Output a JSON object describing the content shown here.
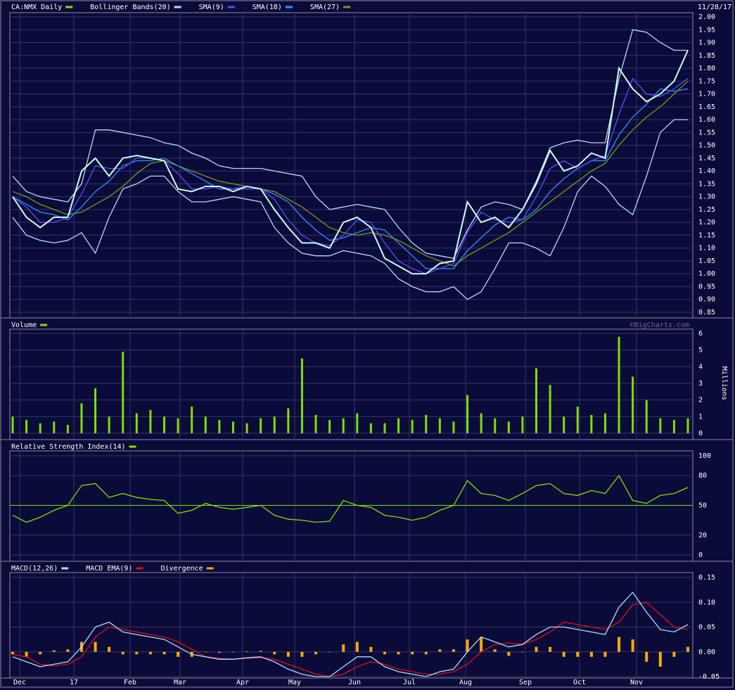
{
  "chart_data": [
    {
      "type": "line",
      "date": "11/28/17",
      "ylim": [
        0.85,
        2.0
      ],
      "yticks": [
        0.85,
        {
          "value": 0.9,
          "label": "0.90"
        },
        0.95,
        {
          "value": 1.0,
          "label": "1.00"
        },
        1.05,
        {
          "value": 1.1,
          "label": "1.10"
        },
        1.15,
        {
          "value": 1.2,
          "label": "1.20"
        },
        1.25,
        {
          "value": 1.3,
          "label": "1.30"
        },
        1.35,
        {
          "value": 1.4,
          "label": "1.40"
        },
        1.45,
        {
          "value": 1.5,
          "label": "1.50"
        },
        1.55,
        {
          "value": 1.6,
          "label": "1.60"
        },
        1.65,
        {
          "value": 1.7,
          "label": "1.70"
        },
        1.75,
        {
          "value": 1.8,
          "label": "1.80"
        },
        1.85,
        {
          "value": 1.9,
          "label": "1.90"
        },
        1.95,
        {
          "value": 2.0,
          "label": "2.00"
        }
      ],
      "grid": true,
      "series": [
        {
          "name": "CA:NMX Daily",
          "color": "#7fe000",
          "line_color": "#ccffee",
          "values": [
            1.3,
            1.22,
            1.18,
            1.22,
            1.22,
            1.4,
            1.45,
            1.38,
            1.45,
            1.46,
            1.45,
            1.44,
            1.33,
            1.32,
            1.34,
            1.34,
            1.32,
            1.34,
            1.33,
            1.25,
            1.18,
            1.12,
            1.12,
            1.1,
            1.2,
            1.22,
            1.18,
            1.06,
            1.03,
            1.0,
            1.0,
            1.04,
            1.05,
            1.28,
            1.2,
            1.22,
            1.18,
            1.25,
            1.35,
            1.48,
            1.4,
            1.42,
            1.47,
            1.45,
            1.8,
            1.72,
            1.67,
            1.7,
            1.75,
            1.87
          ]
        },
        {
          "name": "Bollinger Bands(20)",
          "color": "#b8d8ff",
          "values": [
            1.38,
            1.32,
            1.3,
            1.29,
            1.28,
            1.35,
            1.56,
            1.56,
            1.55,
            1.54,
            1.53,
            1.51,
            1.5,
            1.47,
            1.45,
            1.42,
            1.41,
            1.41,
            1.41,
            1.4,
            1.39,
            1.38,
            1.3,
            1.25,
            1.26,
            1.27,
            1.26,
            1.25,
            1.18,
            1.12,
            1.08,
            1.07,
            1.06,
            1.17,
            1.26,
            1.28,
            1.27,
            1.25,
            1.36,
            1.49,
            1.51,
            1.52,
            1.51,
            1.51,
            1.76,
            1.95,
            1.94,
            1.9,
            1.87,
            1.87
          ],
          "lower": [
            1.22,
            1.15,
            1.13,
            1.12,
            1.13,
            1.16,
            1.08,
            1.22,
            1.33,
            1.35,
            1.38,
            1.38,
            1.32,
            1.28,
            1.28,
            1.29,
            1.3,
            1.29,
            1.28,
            1.18,
            1.12,
            1.08,
            1.07,
            1.07,
            1.09,
            1.08,
            1.07,
            1.04,
            0.98,
            0.95,
            0.93,
            0.93,
            0.95,
            0.9,
            0.93,
            1.02,
            1.12,
            1.12,
            1.1,
            1.07,
            1.18,
            1.32,
            1.38,
            1.34,
            1.27,
            1.23,
            1.38,
            1.55,
            1.6,
            1.6
          ]
        },
        {
          "name": "SMA(9)",
          "color": "#5a4cff",
          "values": [
            1.3,
            1.26,
            1.2,
            1.2,
            1.22,
            1.31,
            1.42,
            1.41,
            1.41,
            1.45,
            1.45,
            1.44,
            1.39,
            1.33,
            1.33,
            1.34,
            1.33,
            1.33,
            1.33,
            1.29,
            1.21,
            1.15,
            1.12,
            1.11,
            1.15,
            1.21,
            1.2,
            1.12,
            1.05,
            1.02,
            1.0,
            1.02,
            1.04,
            1.16,
            1.24,
            1.21,
            1.2,
            1.21,
            1.3,
            1.41,
            1.44,
            1.41,
            1.44,
            1.46,
            1.62,
            1.76,
            1.7,
            1.69,
            1.72,
            1.76
          ]
        },
        {
          "name": "SMA(18)",
          "color": "#2f8fff",
          "values": [
            1.3,
            1.27,
            1.24,
            1.23,
            1.21,
            1.26,
            1.32,
            1.36,
            1.42,
            1.44,
            1.44,
            1.45,
            1.42,
            1.39,
            1.36,
            1.33,
            1.33,
            1.34,
            1.33,
            1.31,
            1.28,
            1.22,
            1.17,
            1.13,
            1.14,
            1.16,
            1.18,
            1.17,
            1.12,
            1.07,
            1.02,
            1.02,
            1.02,
            1.09,
            1.14,
            1.19,
            1.22,
            1.21,
            1.25,
            1.32,
            1.37,
            1.41,
            1.44,
            1.44,
            1.54,
            1.61,
            1.66,
            1.72,
            1.71,
            1.72
          ]
        },
        {
          "name": "SMA(27)",
          "color": "#7a9a10",
          "values": [
            1.32,
            1.3,
            1.27,
            1.25,
            1.23,
            1.24,
            1.27,
            1.3,
            1.34,
            1.39,
            1.43,
            1.44,
            1.42,
            1.4,
            1.38,
            1.36,
            1.35,
            1.34,
            1.33,
            1.32,
            1.29,
            1.26,
            1.22,
            1.18,
            1.16,
            1.15,
            1.16,
            1.15,
            1.13,
            1.1,
            1.07,
            1.05,
            1.03,
            1.07,
            1.1,
            1.13,
            1.16,
            1.2,
            1.24,
            1.28,
            1.32,
            1.36,
            1.4,
            1.43,
            1.5,
            1.56,
            1.61,
            1.65,
            1.7,
            1.75
          ]
        }
      ]
    },
    {
      "type": "bar",
      "ylabel": "Millions",
      "watermark": "©BigCharts.com",
      "ylim": [
        0,
        6
      ],
      "yticks": [
        0,
        1,
        2,
        3,
        4,
        5,
        6
      ],
      "grid": true,
      "series": [
        {
          "name": "Volume",
          "color": "#7fe000",
          "values": [
            1.0,
            0.8,
            0.6,
            0.7,
            0.5,
            1.8,
            2.7,
            1.0,
            4.9,
            1.2,
            1.4,
            1.0,
            0.9,
            1.6,
            1.0,
            0.8,
            0.7,
            0.6,
            0.9,
            1.0,
            1.5,
            4.5,
            1.1,
            0.8,
            0.9,
            1.2,
            0.6,
            0.6,
            0.9,
            0.8,
            1.1,
            0.9,
            0.7,
            2.3,
            1.2,
            0.9,
            0.7,
            1.0,
            3.9,
            2.9,
            1.0,
            1.6,
            1.1,
            1.2,
            5.8,
            3.4,
            2.0,
            0.9,
            0.8,
            0.9
          ]
        }
      ]
    },
    {
      "type": "line",
      "ylim": [
        0,
        100
      ],
      "yticks": [
        0,
        20,
        50,
        80,
        100
      ],
      "grid": true,
      "hline": 50,
      "hline_color": "#7fe000",
      "series": [
        {
          "name": "Relative Strength Index(14)",
          "color": "#7fe000",
          "values": [
            40,
            33,
            38,
            45,
            50,
            70,
            72,
            58,
            62,
            58,
            56,
            55,
            42,
            45,
            52,
            48,
            46,
            48,
            50,
            40,
            36,
            35,
            33,
            34,
            55,
            50,
            48,
            40,
            38,
            35,
            38,
            45,
            50,
            75,
            62,
            60,
            55,
            62,
            70,
            72,
            62,
            60,
            65,
            62,
            80,
            55,
            52,
            60,
            62,
            68
          ]
        }
      ]
    },
    {
      "type": "line",
      "ylim": [
        -0.05,
        0.15
      ],
      "yticks": [
        -0.05,
        {
          "value": 0,
          "label": "0.00"
        },
        0.05,
        {
          "value": 0.1,
          "label": "0.10"
        },
        0.15
      ],
      "grid": true,
      "xtick_labels": [
        "Dec",
        "17",
        "Feb",
        "Mar",
        "Apr",
        "May",
        "Jun",
        "Jul",
        "Aug",
        "Sep",
        "Oct",
        "Nov"
      ],
      "series": [
        {
          "name": "MACD(12,26)",
          "color": "#aaddff",
          "values": [
            -0.01,
            -0.02,
            -0.03,
            -0.025,
            -0.02,
            0.01,
            0.05,
            0.06,
            0.04,
            0.035,
            0.03,
            0.025,
            0.01,
            -0.005,
            -0.01,
            -0.015,
            -0.015,
            -0.012,
            -0.01,
            -0.02,
            -0.035,
            -0.045,
            -0.05,
            -0.05,
            -0.03,
            -0.01,
            -0.01,
            -0.03,
            -0.04,
            -0.045,
            -0.05,
            -0.04,
            -0.035,
            0.0,
            0.03,
            0.02,
            0.01,
            0.015,
            0.035,
            0.05,
            0.05,
            0.045,
            0.04,
            0.035,
            0.09,
            0.12,
            0.08,
            0.045,
            0.04,
            0.055
          ]
        },
        {
          "name": "MACD EMA(9)",
          "color": "#e01010",
          "values": [
            -0.005,
            -0.01,
            -0.025,
            -0.028,
            -0.025,
            -0.01,
            0.03,
            0.05,
            0.045,
            0.04,
            0.035,
            0.03,
            0.02,
            0.005,
            -0.01,
            -0.013,
            -0.015,
            -0.013,
            -0.012,
            -0.015,
            -0.025,
            -0.035,
            -0.045,
            -0.05,
            -0.045,
            -0.03,
            -0.02,
            -0.025,
            -0.035,
            -0.04,
            -0.045,
            -0.045,
            -0.04,
            -0.025,
            0.0,
            0.015,
            0.018,
            0.015,
            0.025,
            0.04,
            0.06,
            0.055,
            0.05,
            0.045,
            0.06,
            0.095,
            0.1,
            0.075,
            0.05,
            0.045
          ]
        },
        {
          "name": "Divergence",
          "type": "bar",
          "color": "#ffaa00",
          "values": [
            -0.005,
            -0.01,
            -0.005,
            0.003,
            0.005,
            0.02,
            0.02,
            0.01,
            -0.005,
            -0.005,
            -0.005,
            -0.005,
            -0.01,
            -0.01,
            0,
            -0.002,
            0,
            0.001,
            0.002,
            -0.005,
            -0.01,
            -0.01,
            -0.005,
            0,
            0.015,
            0.02,
            0.01,
            -0.005,
            -0.005,
            -0.005,
            -0.005,
            0.005,
            0.005,
            0.025,
            0.03,
            0.005,
            -0.008,
            0,
            0.01,
            0.01,
            -0.01,
            -0.01,
            -0.01,
            -0.01,
            0.03,
            0.025,
            -0.02,
            -0.03,
            -0.01,
            0.01
          ]
        }
      ]
    }
  ]
}
